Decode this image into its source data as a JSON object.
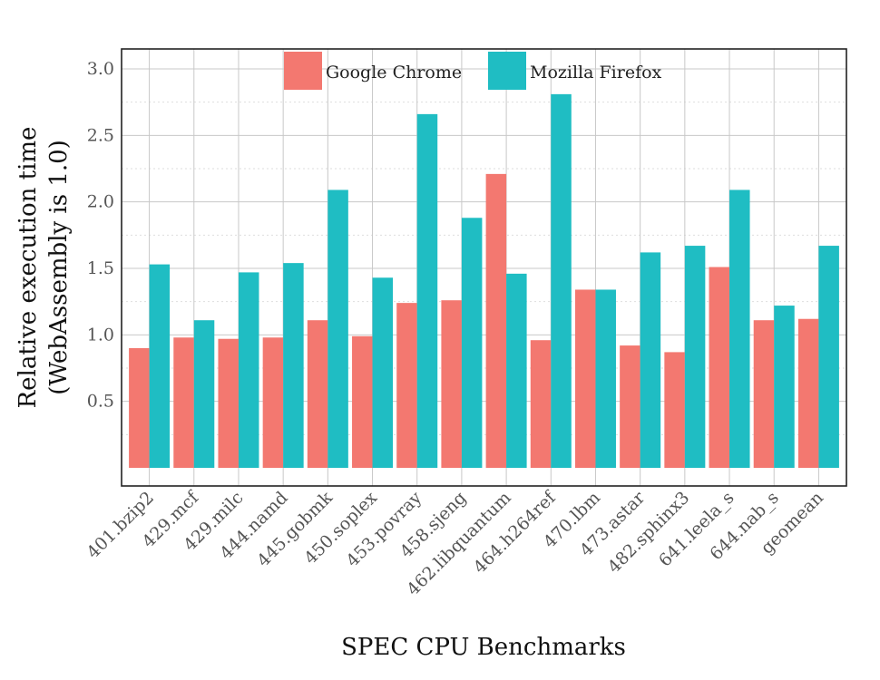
{
  "chart_data": {
    "type": "bar",
    "title": "",
    "xlabel": "SPEC CPU Benchmarks",
    "ylabel_lines": [
      "Relative execution time",
      "(WebAssembly is 1.0)"
    ],
    "ylim": [
      0,
      3.15
    ],
    "yticks": [
      "0.5",
      "1.0",
      "1.5",
      "2.0",
      "2.5",
      "3.0"
    ],
    "grid": true,
    "legend_position": "top-center",
    "categories": [
      "401.bzip2",
      "429.mcf",
      "429.milc",
      "444.namd",
      "445.gobmk",
      "450.soplex",
      "453.povray",
      "458.sjeng",
      "462.libquantum",
      "464.h264ref",
      "470.lbm",
      "473.astar",
      "482.sphinx3",
      "641.leela_s",
      "644.nab_s",
      "geomean"
    ],
    "series": [
      {
        "name": "Google Chrome",
        "color": "#f37870",
        "values": [
          0.9,
          0.98,
          0.97,
          0.98,
          1.11,
          0.99,
          1.24,
          1.26,
          2.21,
          0.96,
          1.34,
          0.92,
          0.87,
          1.51,
          1.11,
          1.12
        ]
      },
      {
        "name": "Mozilla Firefox",
        "color": "#1fbdc3",
        "values": [
          1.53,
          1.11,
          1.47,
          1.54,
          2.09,
          1.43,
          2.66,
          1.88,
          1.46,
          2.81,
          1.34,
          1.62,
          1.67,
          2.09,
          1.22,
          1.67
        ]
      }
    ]
  }
}
